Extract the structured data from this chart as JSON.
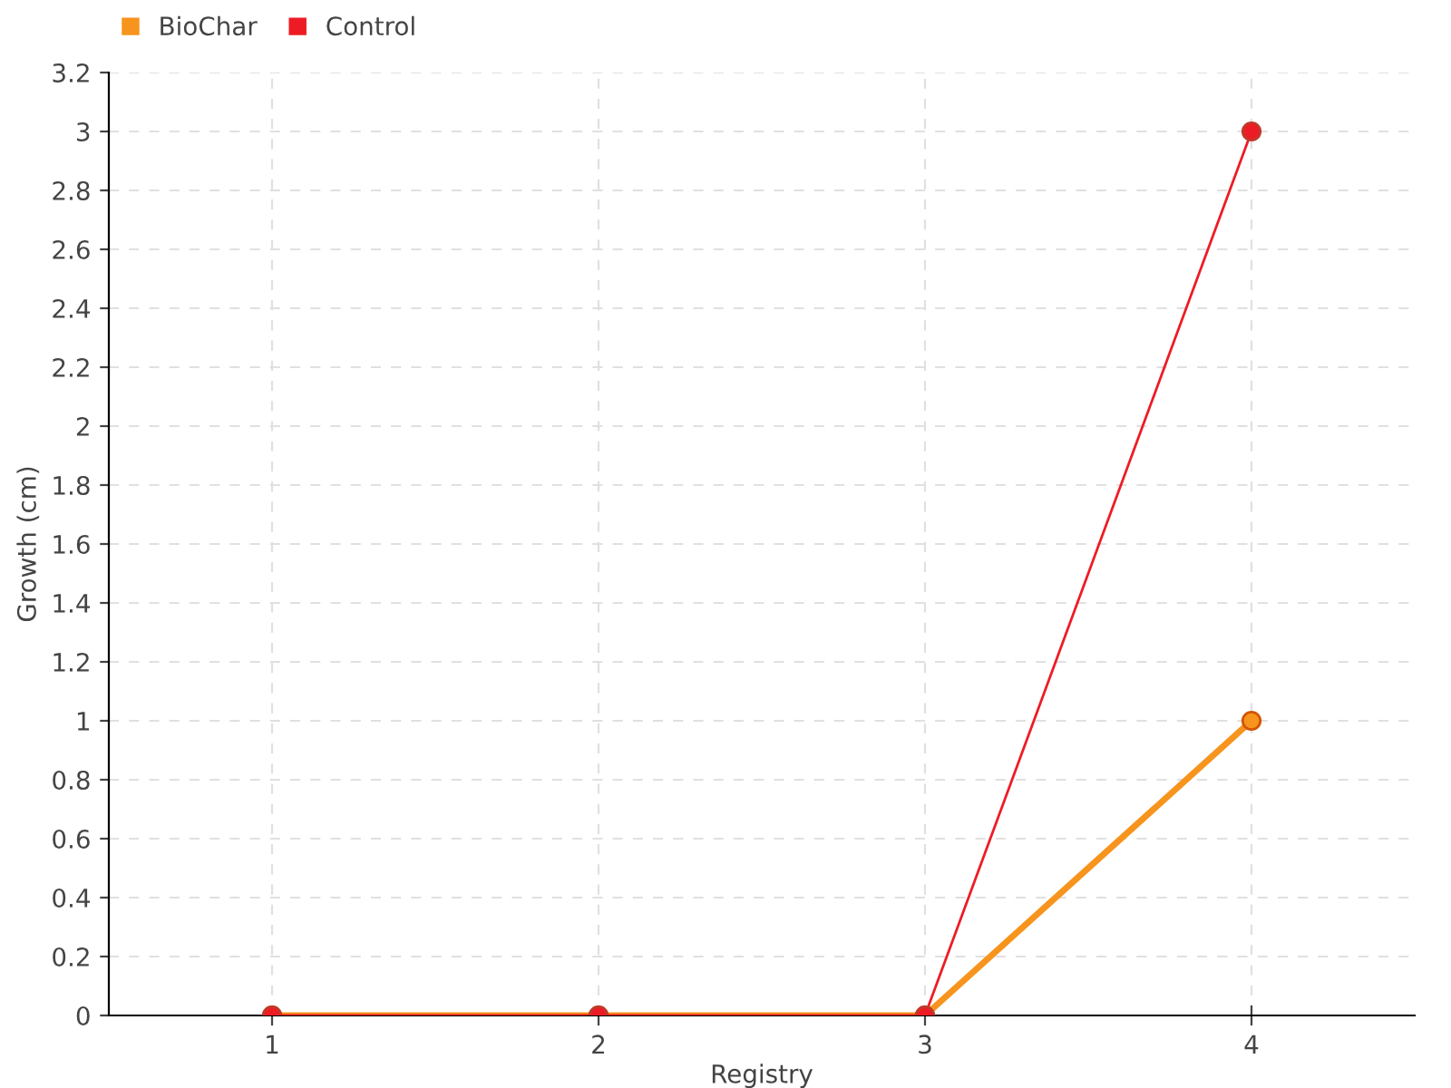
{
  "chart_data": {
    "type": "line",
    "xlabel": "Registry",
    "ylabel": "Growth (cm)",
    "x": [
      1,
      2,
      3,
      4
    ],
    "series": [
      {
        "name": "BioChar",
        "color": "#f7941d",
        "values": [
          0,
          0,
          0,
          1
        ]
      },
      {
        "name": "Control",
        "color": "#ed1c24",
        "values": [
          0,
          0,
          0,
          3
        ]
      }
    ],
    "xlim": [
      0.5,
      4.5
    ],
    "xticks": [
      1,
      2,
      3,
      4
    ],
    "ylim": [
      0,
      3.2
    ],
    "yticks": [
      0,
      0.2,
      0.4,
      0.6,
      0.8,
      1,
      1.2,
      1.4,
      1.6,
      1.8,
      2,
      2.2,
      2.4,
      2.6,
      2.8,
      3,
      3.2
    ],
    "grid": true,
    "legend": "top left",
    "marker": "circle",
    "line_style": "solid"
  }
}
